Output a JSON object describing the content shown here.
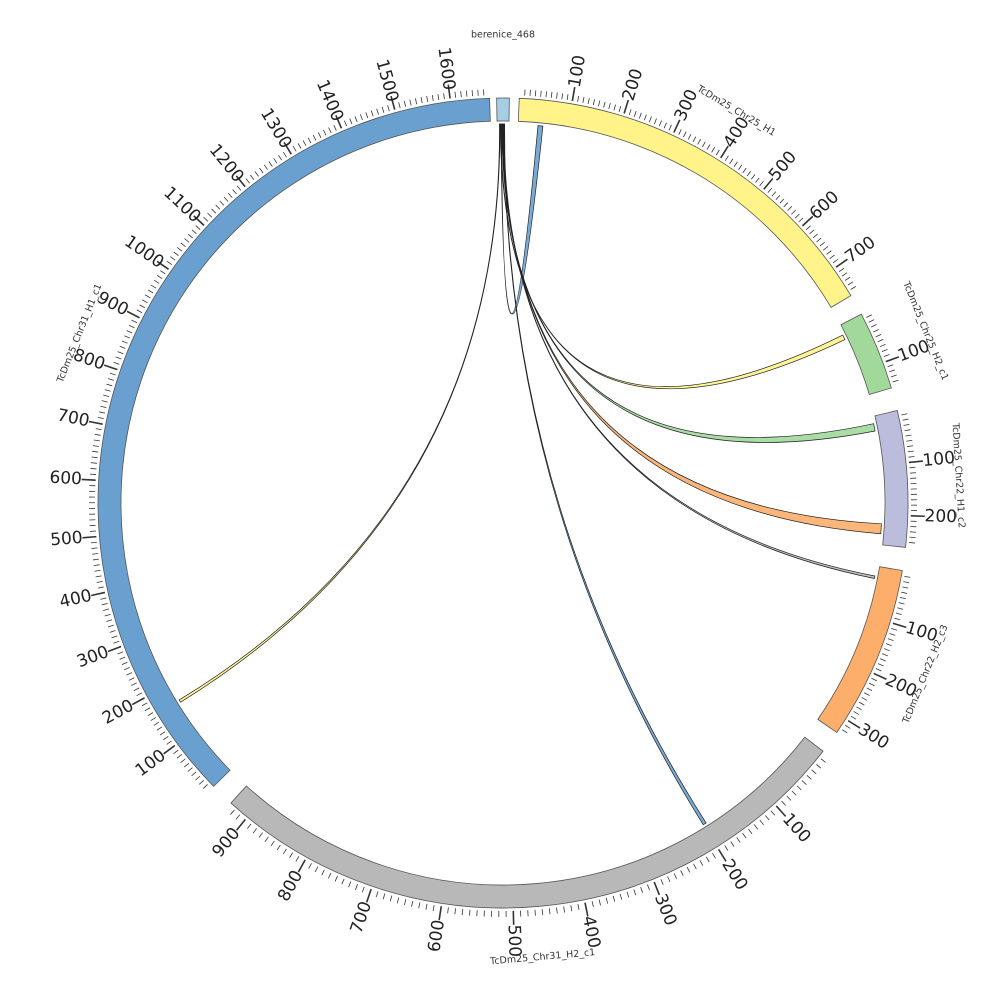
{
  "chart_data": {
    "type": "chord",
    "segments": [
      {
        "id": "berenice",
        "name": "berenice_468",
        "length": 15,
        "color": "#a6cee3",
        "ticks": []
      },
      {
        "id": "h1",
        "name": "TcDm25_Chr25_H1",
        "length": 760,
        "color": "#fff38a",
        "ticks": [
          100,
          200,
          300,
          400,
          500,
          600,
          700
        ]
      },
      {
        "id": "h2c1",
        "name": "TcDm25_Chr25_H2_c1",
        "length": 150,
        "color": "#a1d99b",
        "ticks": [
          100
        ]
      },
      {
        "id": "chr22h1",
        "name": "TcDm25_Chr22_H1_c2",
        "length": 260,
        "color": "#bcbddc",
        "ticks": [
          100,
          200
        ]
      },
      {
        "id": "chr22h2",
        "name": "TcDm25_Chr22_H2_c3",
        "length": 330,
        "color": "#fdae6b",
        "ticks": [
          100,
          200,
          300
        ]
      },
      {
        "id": "chr31h2",
        "name": "TcDm25_Chr31_H2_c1",
        "length": 930,
        "color": "#b8b8b8",
        "ticks": [
          100,
          200,
          300,
          400,
          500,
          600,
          700,
          800,
          900
        ]
      },
      {
        "id": "chr31h1",
        "name": "TcDm25_Chr31_H1_c1",
        "length": 1670,
        "color": "#6aa0d0",
        "ticks": [
          100,
          200,
          300,
          400,
          500,
          600,
          700,
          800,
          900,
          1000,
          1100,
          1200,
          1300,
          1400,
          1500,
          1600
        ]
      }
    ],
    "links": [
      {
        "from": "berenice",
        "from_pos": 5,
        "to": "h1",
        "to_start": 40,
        "to_end": 50,
        "color": "#6aa0d0"
      },
      {
        "from": "berenice",
        "from_pos": 4,
        "to": "h2c1",
        "to_start": 20,
        "to_end": 30,
        "color": "#fff38a"
      },
      {
        "from": "berenice",
        "from_pos": 6,
        "to": "chr22h1",
        "to_start": 15,
        "to_end": 30,
        "color": "#a1d99b"
      },
      {
        "from": "berenice",
        "from_pos": 7,
        "to": "chr22h1",
        "to_start": 218,
        "to_end": 238,
        "color": "#fdae6b"
      },
      {
        "from": "berenice",
        "from_pos": 8,
        "to": "chr22h2",
        "to_start": 20,
        "to_end": 25,
        "color": "#b8b8b8"
      },
      {
        "from": "berenice",
        "from_pos": 9,
        "to": "chr31h2",
        "to_start": 195,
        "to_end": 200,
        "color": "#6aa0d0"
      },
      {
        "from": "berenice",
        "from_pos": 3,
        "to": "chr31h1",
        "to_start": 160,
        "to_end": 165,
        "color": "#fff38a"
      }
    ]
  }
}
